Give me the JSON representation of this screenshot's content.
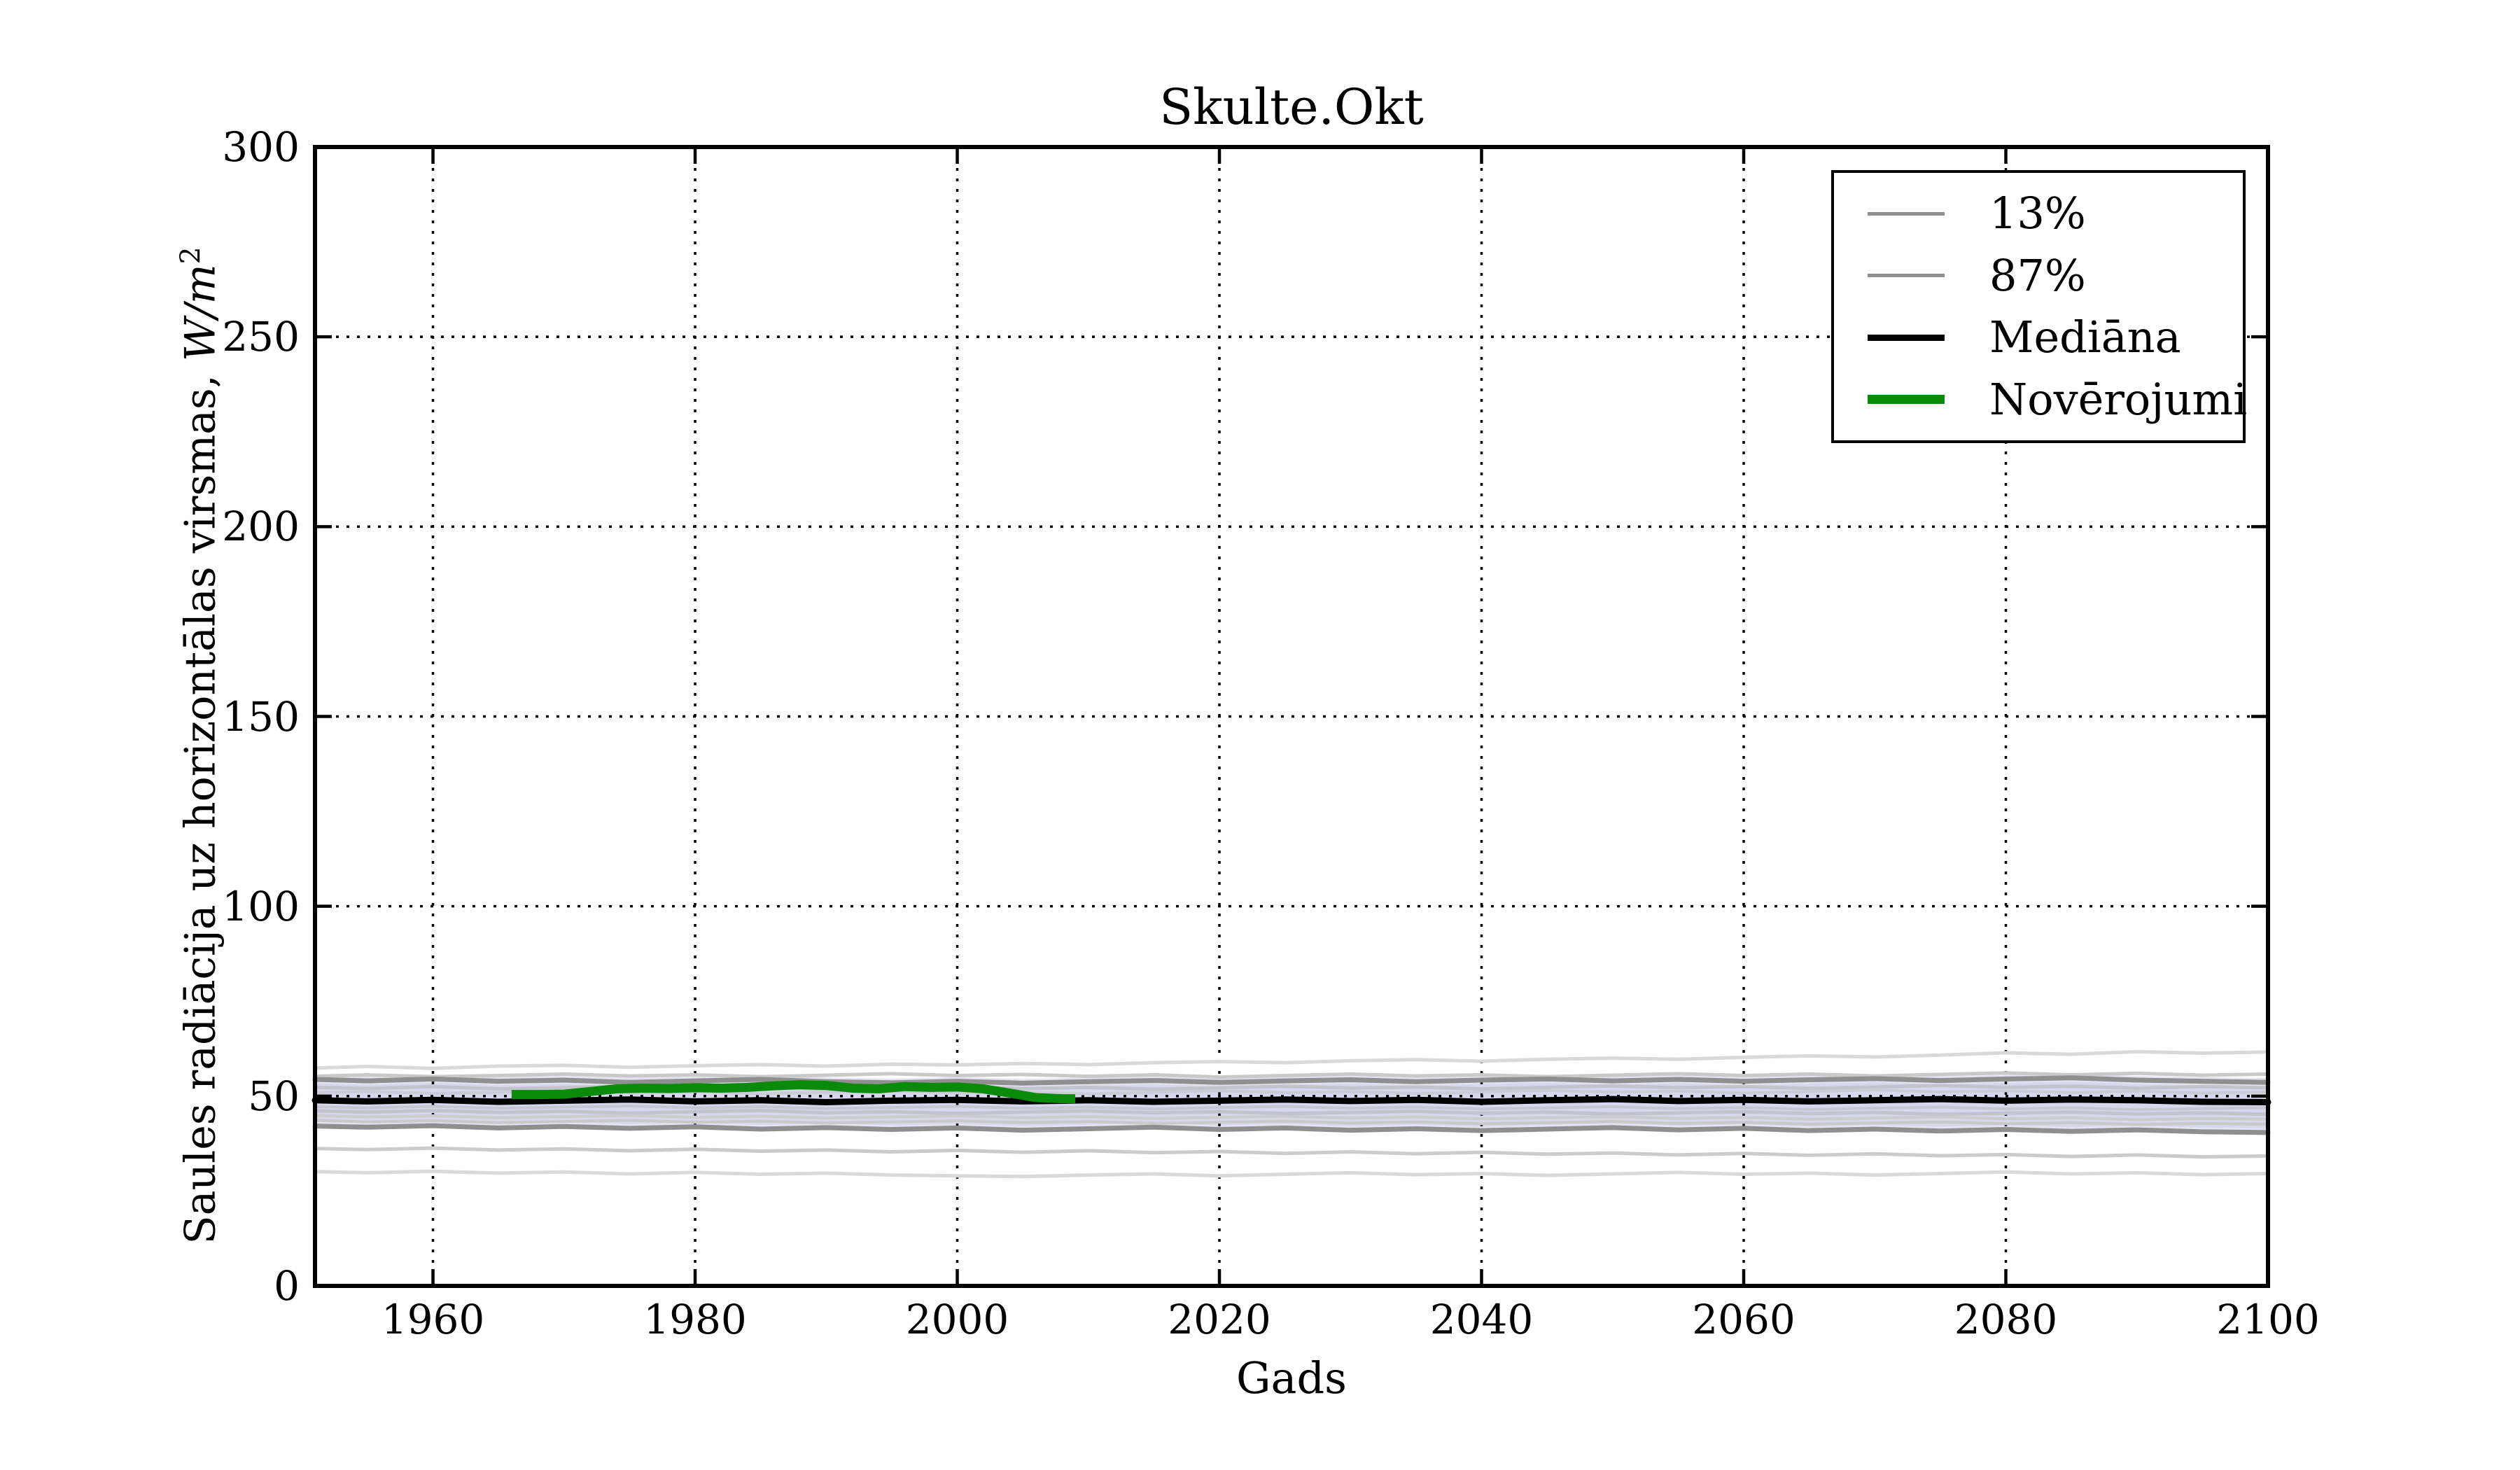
{
  "chart_data": {
    "type": "line",
    "title": "Skulte.Okt",
    "xlabel": "Gads",
    "ylabel": "Saules radiācija uz horizontālas virsmas,",
    "ylabel_units_base": "W/m",
    "ylabel_units_exp": "2",
    "xlim": [
      1951,
      2100
    ],
    "ylim": [
      0,
      300
    ],
    "xticks": [
      1960,
      1980,
      2000,
      2020,
      2040,
      2060,
      2080,
      2100
    ],
    "yticks": [
      0,
      50,
      100,
      150,
      200,
      250,
      300
    ],
    "grid": {
      "linestyle": "dotted",
      "color": "#000000"
    },
    "band_color": "#c9c9e8",
    "band_opacity": 0.5,
    "x": [
      1951,
      1955,
      1960,
      1965,
      1970,
      1975,
      1980,
      1985,
      1990,
      1995,
      2000,
      2005,
      2010,
      2015,
      2020,
      2025,
      2030,
      2035,
      2040,
      2045,
      2050,
      2055,
      2060,
      2065,
      2070,
      2075,
      2080,
      2085,
      2090,
      2095,
      2100
    ],
    "bands": [
      {
        "name": "ensemble-range-outer",
        "upper": [
          55.6,
          55.2,
          55.6,
          55.0,
          55.3,
          54.8,
          55.1,
          55.5,
          54.9,
          54.6,
          55.0,
          54.5,
          54.9,
          55.2,
          54.7,
          55.1,
          55.4,
          54.9,
          55.3,
          55.6,
          55.1,
          55.5,
          55.0,
          55.4,
          55.7,
          55.2,
          55.6,
          55.9,
          55.3,
          55.0,
          54.7
        ],
        "lower": [
          42.0,
          41.7,
          42.1,
          41.5,
          41.9,
          41.4,
          41.8,
          41.2,
          41.6,
          41.1,
          41.5,
          40.9,
          41.3,
          41.7,
          41.1,
          41.5,
          40.9,
          41.3,
          40.8,
          41.2,
          41.6,
          41.0,
          41.4,
          40.8,
          41.2,
          40.7,
          41.1,
          40.6,
          41.0,
          40.5,
          40.3
        ]
      },
      {
        "name": "ensemble-range-inner",
        "upper": [
          53.4,
          53.0,
          53.5,
          52.9,
          53.2,
          52.6,
          53.0,
          53.4,
          52.8,
          52.5,
          52.9,
          52.4,
          52.8,
          53.1,
          52.6,
          53.0,
          53.3,
          52.8,
          53.2,
          53.5,
          53.0,
          53.4,
          52.9,
          53.3,
          53.6,
          53.1,
          53.5,
          53.8,
          53.2,
          52.9,
          52.6
        ],
        "lower": [
          43.2,
          42.9,
          43.3,
          42.7,
          43.1,
          42.6,
          43.0,
          42.4,
          42.8,
          42.3,
          42.7,
          42.1,
          42.5,
          42.9,
          42.3,
          42.7,
          42.1,
          42.5,
          42.0,
          42.4,
          42.8,
          42.2,
          42.6,
          42.0,
          42.4,
          41.9,
          42.3,
          41.8,
          42.2,
          41.7,
          41.5
        ]
      }
    ],
    "series": [
      {
        "id": "run-a",
        "color": "#d9d9d9",
        "width": 5,
        "y": [
          57.4,
          57.8,
          57.3,
          57.9,
          58.1,
          57.6,
          58.0,
          58.3,
          57.9,
          58.4,
          58.2,
          58.6,
          58.3,
          58.8,
          59.1,
          58.8,
          59.3,
          59.6,
          59.2,
          59.7,
          60.0,
          59.7,
          60.2,
          60.6,
          60.3,
          60.8,
          61.4,
          61.0,
          61.7,
          61.3,
          61.6
        ]
      },
      {
        "id": "run-b",
        "color": "#c9c9c9",
        "width": 5,
        "y": [
          55.2,
          55.6,
          55.1,
          55.4,
          55.8,
          55.3,
          55.6,
          55.1,
          55.5,
          55.9,
          55.4,
          55.7,
          55.2,
          55.6,
          55.0,
          55.4,
          55.8,
          55.3,
          55.6,
          55.1,
          55.5,
          55.9,
          55.4,
          55.8,
          55.3,
          55.7,
          56.1,
          55.6,
          56.0,
          55.5,
          55.8
        ]
      },
      {
        "id": "run-c",
        "color": "#c3c3cd",
        "width": 5,
        "y": [
          52.3,
          52.0,
          52.5,
          51.9,
          52.2,
          52.6,
          52.0,
          52.4,
          51.8,
          52.2,
          52.5,
          52.0,
          52.3,
          51.8,
          52.2,
          52.6,
          52.1,
          52.4,
          51.9,
          52.3,
          52.7,
          52.2,
          52.5,
          52.0,
          52.4,
          52.8,
          52.3,
          52.6,
          52.1,
          52.5,
          52.2
        ]
      },
      {
        "id": "run-d",
        "color": "#cbcbd5",
        "width": 4,
        "y": [
          50.9,
          51.2,
          50.7,
          51.0,
          51.4,
          50.8,
          51.2,
          50.6,
          51.0,
          51.3,
          50.8,
          51.1,
          50.6,
          51.0,
          51.4,
          50.9,
          51.2,
          50.7,
          51.1,
          51.5,
          51.0,
          51.3,
          50.8,
          51.2,
          51.6,
          51.1,
          51.4,
          50.9,
          51.3,
          50.8,
          51.1
        ]
      },
      {
        "id": "run-e",
        "color": "#c7c7d1",
        "width": 4,
        "y": [
          47.2,
          46.9,
          47.3,
          46.8,
          47.1,
          47.4,
          46.9,
          47.2,
          46.7,
          47.0,
          47.3,
          46.8,
          47.1,
          46.6,
          47.0,
          47.3,
          46.8,
          47.1,
          46.6,
          46.9,
          47.2,
          46.7,
          47.0,
          46.5,
          46.8,
          47.1,
          46.6,
          46.9,
          46.4,
          46.7,
          47.0
        ]
      },
      {
        "id": "run-f",
        "color": "#c3c3cd",
        "width": 5,
        "y": [
          46.1,
          45.8,
          46.2,
          45.7,
          46.0,
          45.5,
          45.9,
          46.2,
          45.6,
          45.9,
          45.4,
          45.8,
          46.1,
          45.6,
          45.9,
          45.4,
          45.7,
          46.0,
          45.5,
          45.8,
          45.3,
          45.6,
          45.9,
          45.4,
          45.7,
          45.2,
          45.5,
          45.8,
          45.3,
          45.6,
          45.2
        ]
      },
      {
        "id": "run-g",
        "color": "#cccccc",
        "width": 4,
        "y": [
          44.9,
          44.5,
          44.8,
          44.3,
          44.6,
          44.9,
          44.4,
          44.7,
          44.2,
          44.5,
          44.8,
          44.3,
          44.6,
          44.1,
          44.4,
          44.7,
          44.2,
          44.5,
          44.0,
          44.3,
          44.6,
          44.1,
          44.4,
          43.9,
          44.2,
          44.5,
          44.0,
          44.3,
          43.8,
          44.1,
          43.9
        ]
      },
      {
        "id": "run-h",
        "color": "#c9c9c9",
        "width": 4,
        "y": [
          43.6,
          43.2,
          43.5,
          43.0,
          43.3,
          43.6,
          43.1,
          43.4,
          42.9,
          43.2,
          43.5,
          43.0,
          43.3,
          42.8,
          43.1,
          43.4,
          42.9,
          43.2,
          42.7,
          43.0,
          43.3,
          42.8,
          43.1,
          42.6,
          42.9,
          43.2,
          42.7,
          43.0,
          42.5,
          42.8,
          42.6
        ]
      },
      {
        "id": "run-i",
        "color": "#cccccc",
        "width": 5,
        "y": [
          36.2,
          35.9,
          36.3,
          35.8,
          36.1,
          35.6,
          36.0,
          35.5,
          35.8,
          35.3,
          35.7,
          35.2,
          35.6,
          35.1,
          35.4,
          34.9,
          35.3,
          34.8,
          35.2,
          34.7,
          35.0,
          34.5,
          34.9,
          34.4,
          34.8,
          34.3,
          34.6,
          34.1,
          34.5,
          34.0,
          34.2
        ]
      },
      {
        "id": "run-j",
        "color": "#d9d9d9",
        "width": 5,
        "y": [
          30.1,
          29.8,
          30.2,
          29.7,
          30.0,
          29.5,
          29.9,
          29.4,
          29.7,
          29.2,
          29.0,
          28.8,
          29.2,
          29.5,
          29.0,
          29.4,
          29.8,
          29.3,
          29.6,
          29.1,
          29.5,
          29.9,
          29.4,
          29.7,
          29.2,
          29.6,
          30.0,
          29.5,
          29.8,
          29.3,
          29.6
        ]
      },
      {
        "id": "quantile-13",
        "label": "13%",
        "color": "#8f8f8f",
        "width": 7,
        "y": [
          42.1,
          41.8,
          42.2,
          41.6,
          42.0,
          41.5,
          41.9,
          41.3,
          41.7,
          41.2,
          41.6,
          41.0,
          41.4,
          41.8,
          41.2,
          41.6,
          41.0,
          41.4,
          40.9,
          41.3,
          41.7,
          41.1,
          41.5,
          40.9,
          41.3,
          40.8,
          41.2,
          40.7,
          41.1,
          40.6,
          40.4
        ]
      },
      {
        "id": "quantile-87",
        "label": "87%",
        "color": "#8f8f8f",
        "width": 7,
        "y": [
          54.4,
          54.0,
          54.5,
          53.9,
          54.2,
          53.6,
          54.0,
          54.4,
          53.8,
          53.5,
          53.9,
          53.4,
          53.8,
          54.1,
          53.6,
          54.0,
          54.3,
          53.8,
          54.2,
          54.5,
          54.0,
          54.4,
          53.9,
          54.3,
          54.6,
          54.1,
          54.5,
          54.8,
          54.2,
          53.9,
          53.6
        ]
      },
      {
        "id": "median",
        "label": "Mediāna",
        "color": "#000000",
        "width": 9,
        "y": [
          48.9,
          48.6,
          49.0,
          48.5,
          48.8,
          49.1,
          48.6,
          48.9,
          48.4,
          48.8,
          49.0,
          48.6,
          48.9,
          48.5,
          48.8,
          49.1,
          48.7,
          49.0,
          48.5,
          48.9,
          49.2,
          48.7,
          49.0,
          48.6,
          48.9,
          49.2,
          48.8,
          49.1,
          48.9,
          48.5,
          48.4
        ]
      }
    ],
    "observations": {
      "id": "observations",
      "label": "Novērojumi",
      "color": "#0a8a0a",
      "width": 13,
      "x": [
        1966,
        1968,
        1970,
        1972,
        1974,
        1976,
        1978,
        1980,
        1982,
        1984,
        1986,
        1988,
        1990,
        1992,
        1994,
        1996,
        1998,
        2000,
        2002,
        2004,
        2006,
        2008,
        2009
      ],
      "y": [
        50.4,
        50.4,
        50.5,
        51.2,
        51.9,
        52.1,
        52.0,
        52.2,
        52.1,
        52.3,
        52.7,
        53.0,
        52.8,
        52.1,
        51.9,
        52.5,
        52.3,
        52.4,
        51.9,
        50.8,
        49.6,
        49.3,
        49.3
      ]
    },
    "legend": {
      "items": [
        {
          "label": "13%",
          "color": "#8f8f8f",
          "lw": 5
        },
        {
          "label": "87%",
          "color": "#8f8f8f",
          "lw": 5
        },
        {
          "label": "Mediāna",
          "color": "#000000",
          "lw": 9
        },
        {
          "label": "Novērojumi",
          "color": "#0a8a0a",
          "lw": 13
        }
      ]
    }
  }
}
